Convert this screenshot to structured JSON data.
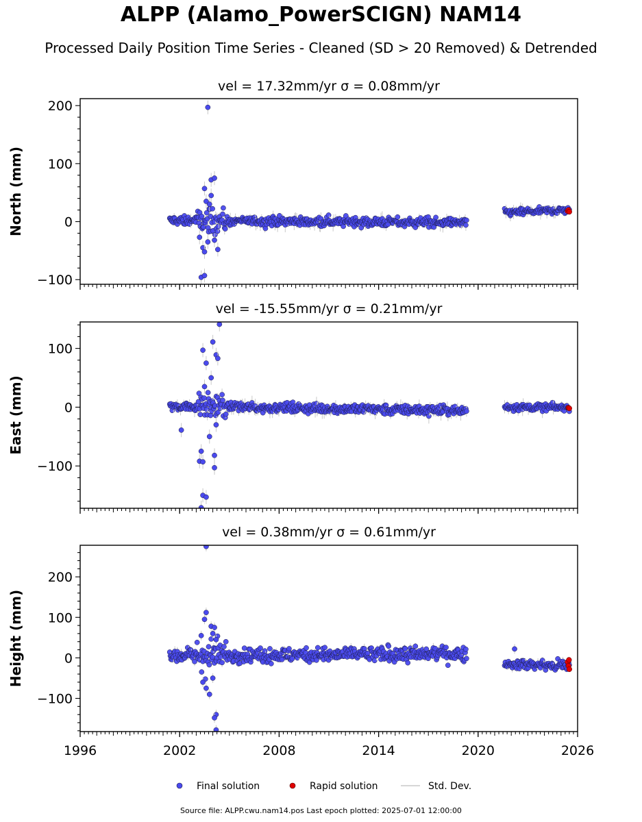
{
  "header": {
    "title": "ALPP (Alamo_PowerSCIGN) NAM14",
    "subtitle": "Processed Daily Position Time Series - Cleaned (SD > 20 Removed) & Detrended"
  },
  "footer": {
    "source_note": "Source file: ALPP.cwu.nam14.pos  Last epoch plotted: 2025-07-01 12:00:00"
  },
  "colors": {
    "final": "#4a4aee",
    "final_edge": "#1a1a40",
    "rapid": "#e00000",
    "std_dev": "#c8c8c8"
  },
  "legend": {
    "placement": "bottom-center",
    "items": [
      "Final solution",
      "Rapid solution",
      "Std. Dev."
    ]
  },
  "chart_data": [
    {
      "type": "scatter",
      "title": "vel = 17.32mm/yr   σ = 0.08mm/yr",
      "ylabel": "North (mm)",
      "xlim": [
        1996,
        2026
      ],
      "ylim": [
        -108,
        212
      ],
      "yticks": [
        -100,
        0,
        100,
        200
      ],
      "xticks": [
        "1996",
        "2002",
        "2008",
        "2014",
        "2020",
        "2026"
      ],
      "segments": [
        {
          "start": 2001.4,
          "end": 2019.3,
          "level": [
            2,
            -2
          ],
          "noise": 4
        },
        {
          "start": 2021.6,
          "end": 2025.5,
          "level": [
            16,
            20
          ],
          "noise": 3
        }
      ],
      "outliers": [
        [
          2003.7,
          197
        ],
        [
          2003.9,
          72
        ],
        [
          2004.1,
          75
        ],
        [
          2003.5,
          57
        ],
        [
          2003.9,
          45
        ],
        [
          2003.6,
          35
        ],
        [
          2003.2,
          -27
        ],
        [
          2003.4,
          -45
        ],
        [
          2003.5,
          -52
        ],
        [
          2003.7,
          -35
        ],
        [
          2004.1,
          -32
        ],
        [
          2004.3,
          -48
        ],
        [
          2003.3,
          -96
        ],
        [
          2003.5,
          -93
        ],
        [
          2003.8,
          30
        ]
      ],
      "rapid": [
        [
          2025.4,
          18
        ],
        [
          2025.45,
          20
        ],
        [
          2025.5,
          17
        ]
      ]
    },
    {
      "type": "scatter",
      "title": "vel = -15.55mm/yr   σ = 0.21mm/yr",
      "ylabel": "East (mm)",
      "xlim": [
        1996,
        2026
      ],
      "ylim": [
        -172,
        145
      ],
      "yticks": [
        -100,
        0,
        100
      ],
      "xticks": [
        "1996",
        "2002",
        "2008",
        "2014",
        "2020",
        "2026"
      ],
      "segments": [
        {
          "start": 2001.4,
          "end": 2019.3,
          "level": [
            2,
            -6
          ],
          "noise": 4
        },
        {
          "start": 2021.6,
          "end": 2025.5,
          "level": [
            0,
            0
          ],
          "noise": 3
        }
      ],
      "outliers": [
        [
          2004.4,
          141
        ],
        [
          2004.0,
          111
        ],
        [
          2003.4,
          97
        ],
        [
          2004.2,
          89
        ],
        [
          2004.3,
          83
        ],
        [
          2003.6,
          75
        ],
        [
          2003.9,
          50
        ],
        [
          2003.5,
          35
        ],
        [
          2002.1,
          -39
        ],
        [
          2003.3,
          -75
        ],
        [
          2003.2,
          -92
        ],
        [
          2003.4,
          -93
        ],
        [
          2004.1,
          -82
        ],
        [
          2004.1,
          -103
        ],
        [
          2003.4,
          -150
        ],
        [
          2003.6,
          -153
        ],
        [
          2003.3,
          -171
        ],
        [
          2003.8,
          -50
        ],
        [
          2004.2,
          -30
        ]
      ],
      "rapid": [
        [
          2025.45,
          -1
        ],
        [
          2025.5,
          -2
        ]
      ]
    },
    {
      "type": "scatter",
      "title": "vel = 0.38mm/yr   σ = 0.61mm/yr",
      "ylabel": "Height (mm)",
      "xlim": [
        1996,
        2026
      ],
      "ylim": [
        -182,
        278
      ],
      "yticks": [
        -100,
        0,
        100,
        200
      ],
      "xticks": [
        "1996",
        "2002",
        "2008",
        "2014",
        "2020",
        "2026"
      ],
      "segments": [
        {
          "start": 2001.4,
          "end": 2019.3,
          "level": [
            5,
            10
          ],
          "noise": 9
        },
        {
          "start": 2021.6,
          "end": 2025.5,
          "level": [
            -15,
            -20
          ],
          "noise": 6
        }
      ],
      "outliers": [
        [
          2003.6,
          275
        ],
        [
          2003.6,
          112
        ],
        [
          2003.5,
          95
        ],
        [
          2003.9,
          78
        ],
        [
          2004.1,
          75
        ],
        [
          2004.0,
          60
        ],
        [
          2003.3,
          55
        ],
        [
          2004.2,
          45
        ],
        [
          2003.4,
          -60
        ],
        [
          2003.6,
          -75
        ],
        [
          2003.8,
          -90
        ],
        [
          2004.2,
          -140
        ],
        [
          2004.1,
          -148
        ],
        [
          2004.2,
          -178
        ],
        [
          2004.0,
          -50
        ],
        [
          2022.2,
          22
        ]
      ],
      "rapid": [
        [
          2025.4,
          -10
        ],
        [
          2025.45,
          -20
        ],
        [
          2025.5,
          -28
        ],
        [
          2025.48,
          -5
        ]
      ]
    }
  ]
}
